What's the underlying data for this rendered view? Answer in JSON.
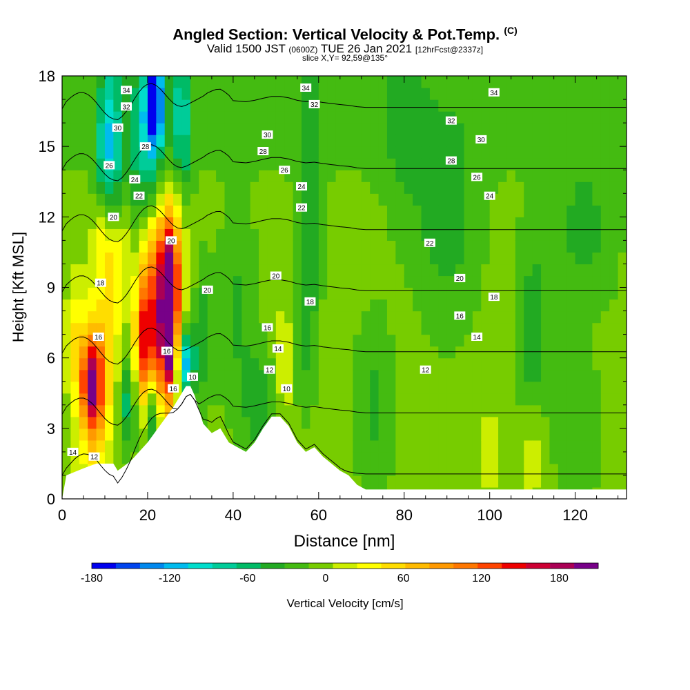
{
  "header": {
    "title": "Angled Section: Vertical Velocity & Pot.Temp.",
    "title_mark": "(C)",
    "valid_prefix": "Valid 1500 JST",
    "valid_zulu": "(0600Z)",
    "valid_date": "TUE 26 Jan 2021",
    "forecast": "[12hrFcst@2337z]",
    "slice": "slice X,Y= 92,59@135°"
  },
  "chart_data": {
    "type": "heatmap",
    "xlabel": "Distance [nm]",
    "ylabel": "Height [Kft MSL]",
    "xlim": [
      0,
      132
    ],
    "ylim": [
      0,
      18
    ],
    "x_ticks": [
      0,
      20,
      40,
      60,
      80,
      100,
      120
    ],
    "y_ticks": [
      0,
      3,
      6,
      9,
      12,
      15,
      18
    ],
    "grid": false,
    "field": "Vertical Velocity [cm/s]",
    "colorbar": {
      "label": "Vertical Velocity [cm/s]",
      "min": -180,
      "max": 210,
      "step": 20,
      "ticks": [
        -180,
        -120,
        -60,
        0,
        60,
        120,
        180
      ],
      "colors": [
        "#0000ee",
        "#0044ee",
        "#0088ee",
        "#00bbee",
        "#00ddcc",
        "#00cc99",
        "#00bb66",
        "#22aa22",
        "#44bb11",
        "#77cc00",
        "#ccee00",
        "#ffff00",
        "#ffdd00",
        "#ffbb00",
        "#ff9900",
        "#ff7700",
        "#ff4400",
        "#ee0000",
        "#cc0033",
        "#aa0055",
        "#770088"
      ]
    },
    "terrain": {
      "x": [
        0,
        1,
        5,
        8,
        12,
        13,
        16,
        18,
        20,
        22,
        24,
        26,
        28,
        29,
        30,
        31,
        33,
        35,
        37,
        39,
        41,
        43,
        45,
        47,
        49,
        51,
        53,
        55,
        57,
        59,
        61,
        63,
        65,
        67,
        69,
        71,
        132
      ],
      "height_kft": [
        0,
        1.0,
        1.3,
        1.5,
        1.5,
        1.2,
        1.6,
        2.0,
        2.4,
        2.9,
        3.4,
        3.9,
        4.5,
        4.8,
        4.8,
        4.4,
        3.2,
        2.8,
        3.0,
        2.4,
        2.2,
        2.0,
        2.4,
        3.0,
        3.5,
        3.5,
        3.1,
        2.4,
        2.0,
        2.2,
        1.8,
        1.5,
        1.2,
        1.0,
        0.6,
        0.4,
        0.4
      ]
    },
    "velocity_features": [
      {
        "x": 7,
        "y": 5.0,
        "value": 150,
        "sx": 1.6,
        "sy": 1.3
      },
      {
        "x": 7.5,
        "y": 4.5,
        "value": 90,
        "sx": 3.0,
        "sy": 2.8
      },
      {
        "x": 12,
        "y": 8.5,
        "value": 40,
        "sx": 2.2,
        "sy": 2.0
      },
      {
        "x": 10,
        "y": 11.0,
        "value": 50,
        "sx": 2.0,
        "sy": 1.5
      },
      {
        "x": 14,
        "y": 10.8,
        "value": 30,
        "sx": 1.5,
        "sy": 1.2
      },
      {
        "x": 19,
        "y": 6.5,
        "value": 110,
        "sx": 1.5,
        "sy": 2.0
      },
      {
        "x": 20.5,
        "y": 9.5,
        "value": 70,
        "sx": 2.2,
        "sy": 2.5
      },
      {
        "x": 25,
        "y": 7.5,
        "value": 190,
        "sx": 1.3,
        "sy": 2.2
      },
      {
        "x": 24.5,
        "y": 9.5,
        "value": 120,
        "sx": 2.2,
        "sy": 2.5
      },
      {
        "x": 22.5,
        "y": 6.0,
        "value": 70,
        "sx": 2.5,
        "sy": 2.5
      },
      {
        "x": 27,
        "y": 10.5,
        "value": 40,
        "sx": 1.8,
        "sy": 2.0
      },
      {
        "x": 3,
        "y": 7.0,
        "value": 35,
        "sx": 1.5,
        "sy": 1.8
      },
      {
        "x": 11,
        "y": 15.0,
        "value": -100,
        "sx": 2.0,
        "sy": 2.5
      },
      {
        "x": 21.5,
        "y": 17.0,
        "value": -160,
        "sx": 1.4,
        "sy": 1.3
      },
      {
        "x": 20,
        "y": 15.0,
        "value": -80,
        "sx": 3.0,
        "sy": 2.8
      },
      {
        "x": 28,
        "y": 16.0,
        "value": -70,
        "sx": 1.6,
        "sy": 2.5
      },
      {
        "x": 15.5,
        "y": 4.2,
        "value": -60,
        "sx": 1.5,
        "sy": 1.5
      },
      {
        "x": 21,
        "y": 3.5,
        "value": -90,
        "sx": 1.3,
        "sy": 1.2
      },
      {
        "x": 29,
        "y": 5.8,
        "value": -120,
        "sx": 1.3,
        "sy": 1.0
      },
      {
        "x": 33,
        "y": 7.0,
        "value": -40,
        "sx": 1.5,
        "sy": 2.0
      },
      {
        "x": 41,
        "y": 8.0,
        "value": -30,
        "sx": 3.0,
        "sy": 3.0
      },
      {
        "x": 46,
        "y": 4.0,
        "value": -40,
        "sx": 2.5,
        "sy": 1.5
      },
      {
        "x": 52,
        "y": 6.0,
        "value": 35,
        "sx": 1.2,
        "sy": 2.0
      },
      {
        "x": 57,
        "y": 8.0,
        "value": -40,
        "sx": 1.8,
        "sy": 2.5
      },
      {
        "x": 58,
        "y": 14.0,
        "value": -40,
        "sx": 2.0,
        "sy": 3.0
      },
      {
        "x": 73,
        "y": 4.0,
        "value": -30,
        "sx": 3.0,
        "sy": 2.5
      },
      {
        "x": 90,
        "y": 12.0,
        "value": -40,
        "sx": 5.0,
        "sy": 3.0
      },
      {
        "x": 110,
        "y": 7.0,
        "value": -40,
        "sx": 2.5,
        "sy": 3.0
      },
      {
        "x": 122,
        "y": 11.5,
        "value": -35,
        "sx": 5.0,
        "sy": 2.2
      },
      {
        "x": 110,
        "y": 2.0,
        "value": 30,
        "sx": 2.5,
        "sy": 1.8
      },
      {
        "x": 100,
        "y": 2.0,
        "value": 30,
        "sx": 1.5,
        "sy": 1.5
      },
      {
        "x": 80,
        "y": 16.0,
        "value": -25,
        "sx": 4.0,
        "sy": 3.0
      },
      {
        "x": 120,
        "y": 3.0,
        "value": -25,
        "sx": 4.0,
        "sy": 2.0
      }
    ],
    "isentropes_c": [
      10,
      12,
      14,
      16,
      18,
      20,
      22,
      24,
      26,
      28,
      30,
      32,
      34
    ],
    "isentrope_labels": [
      {
        "text": "34",
        "x": 15,
        "y": 17.4
      },
      {
        "text": "32",
        "x": 15,
        "y": 16.7
      },
      {
        "text": "30",
        "x": 13,
        "y": 15.8
      },
      {
        "text": "28",
        "x": 19.5,
        "y": 15.0
      },
      {
        "text": "26",
        "x": 11,
        "y": 14.2
      },
      {
        "text": "24",
        "x": 17,
        "y": 13.6
      },
      {
        "text": "22",
        "x": 18,
        "y": 12.9
      },
      {
        "text": "20",
        "x": 12,
        "y": 12.0
      },
      {
        "text": "20",
        "x": 25.5,
        "y": 11.0
      },
      {
        "text": "18",
        "x": 9,
        "y": 9.2
      },
      {
        "text": "16",
        "x": 8.5,
        "y": 6.9
      },
      {
        "text": "16",
        "x": 24.5,
        "y": 6.3
      },
      {
        "text": "16",
        "x": 26,
        "y": 4.7
      },
      {
        "text": "10",
        "x": 30.5,
        "y": 5.2
      },
      {
        "text": "20",
        "x": 34,
        "y": 8.9
      },
      {
        "text": "14",
        "x": 2.5,
        "y": 2.0
      },
      {
        "text": "12",
        "x": 7.5,
        "y": 1.8
      },
      {
        "text": "34",
        "x": 57,
        "y": 17.5
      },
      {
        "text": "32",
        "x": 59,
        "y": 16.8
      },
      {
        "text": "30",
        "x": 48,
        "y": 15.5
      },
      {
        "text": "28",
        "x": 47,
        "y": 14.8
      },
      {
        "text": "26",
        "x": 52,
        "y": 14.0
      },
      {
        "text": "24",
        "x": 56,
        "y": 13.3
      },
      {
        "text": "22",
        "x": 56,
        "y": 12.4
      },
      {
        "text": "20",
        "x": 50,
        "y": 9.5
      },
      {
        "text": "18",
        "x": 58,
        "y": 8.4
      },
      {
        "text": "16",
        "x": 48,
        "y": 7.3
      },
      {
        "text": "14",
        "x": 50.5,
        "y": 6.4
      },
      {
        "text": "12",
        "x": 48.5,
        "y": 5.5
      },
      {
        "text": "10",
        "x": 52.5,
        "y": 4.7
      },
      {
        "text": "34",
        "x": 101,
        "y": 17.3
      },
      {
        "text": "32",
        "x": 91,
        "y": 16.1
      },
      {
        "text": "30",
        "x": 98,
        "y": 15.3
      },
      {
        "text": "28",
        "x": 91,
        "y": 14.4
      },
      {
        "text": "26",
        "x": 97,
        "y": 13.7
      },
      {
        "text": "24",
        "x": 100,
        "y": 12.9
      },
      {
        "text": "22",
        "x": 86,
        "y": 10.9
      },
      {
        "text": "20",
        "x": 93,
        "y": 9.4
      },
      {
        "text": "18",
        "x": 101,
        "y": 8.6
      },
      {
        "text": "16",
        "x": 93,
        "y": 7.8
      },
      {
        "text": "14",
        "x": 97,
        "y": 6.9
      },
      {
        "text": "12",
        "x": 85,
        "y": 5.5
      }
    ]
  }
}
